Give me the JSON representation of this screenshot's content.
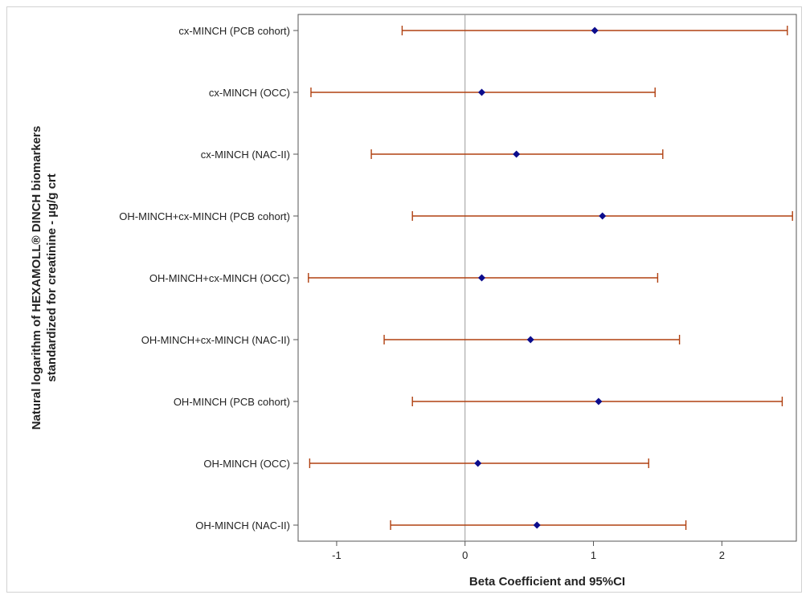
{
  "chart_data": {
    "type": "scatter",
    "subtype": "forest-plot",
    "title": "",
    "xlabel": "Beta Coefficient and 95%CI",
    "ylabel_lines": [
      "Natural logarithm of HEXAMOLL® DINCH biomarkers",
      "standardized for creatinine - µg/g crt"
    ],
    "xlim": [
      -1.3,
      2.58
    ],
    "x_ticks": [
      -1,
      0,
      1,
      2
    ],
    "x_tick_labels": [
      "-1",
      "0",
      "1",
      "2"
    ],
    "reference_line_x": 0,
    "grid": false,
    "categories": [
      "cx-MINCH (PCB cohort)",
      "cx-MINCH (OCC)",
      "cx-MINCH (NAC-II)",
      "OH-MINCH+cx-MINCH (PCB cohort)",
      "OH-MINCH+cx-MINCH (OCC)",
      "OH-MINCH+cx-MINCH (NAC-II)",
      "OH-MINCH (PCB cohort)",
      "OH-MINCH (OCC)",
      "OH-MINCH (NAC-II)"
    ],
    "estimates": [
      1.01,
      0.13,
      0.4,
      1.07,
      0.13,
      0.51,
      1.04,
      0.1,
      0.56
    ],
    "lower": [
      -0.49,
      -1.2,
      -0.73,
      -0.41,
      -1.22,
      -0.63,
      -0.41,
      -1.21,
      -0.58
    ],
    "upper": [
      2.51,
      1.48,
      1.54,
      2.55,
      1.5,
      1.67,
      2.47,
      1.43,
      1.72
    ],
    "colors": {
      "point": "#0c0c8c",
      "interval": "#b04010",
      "reference_line": "#9a9a9a",
      "axis": "#555555"
    }
  }
}
